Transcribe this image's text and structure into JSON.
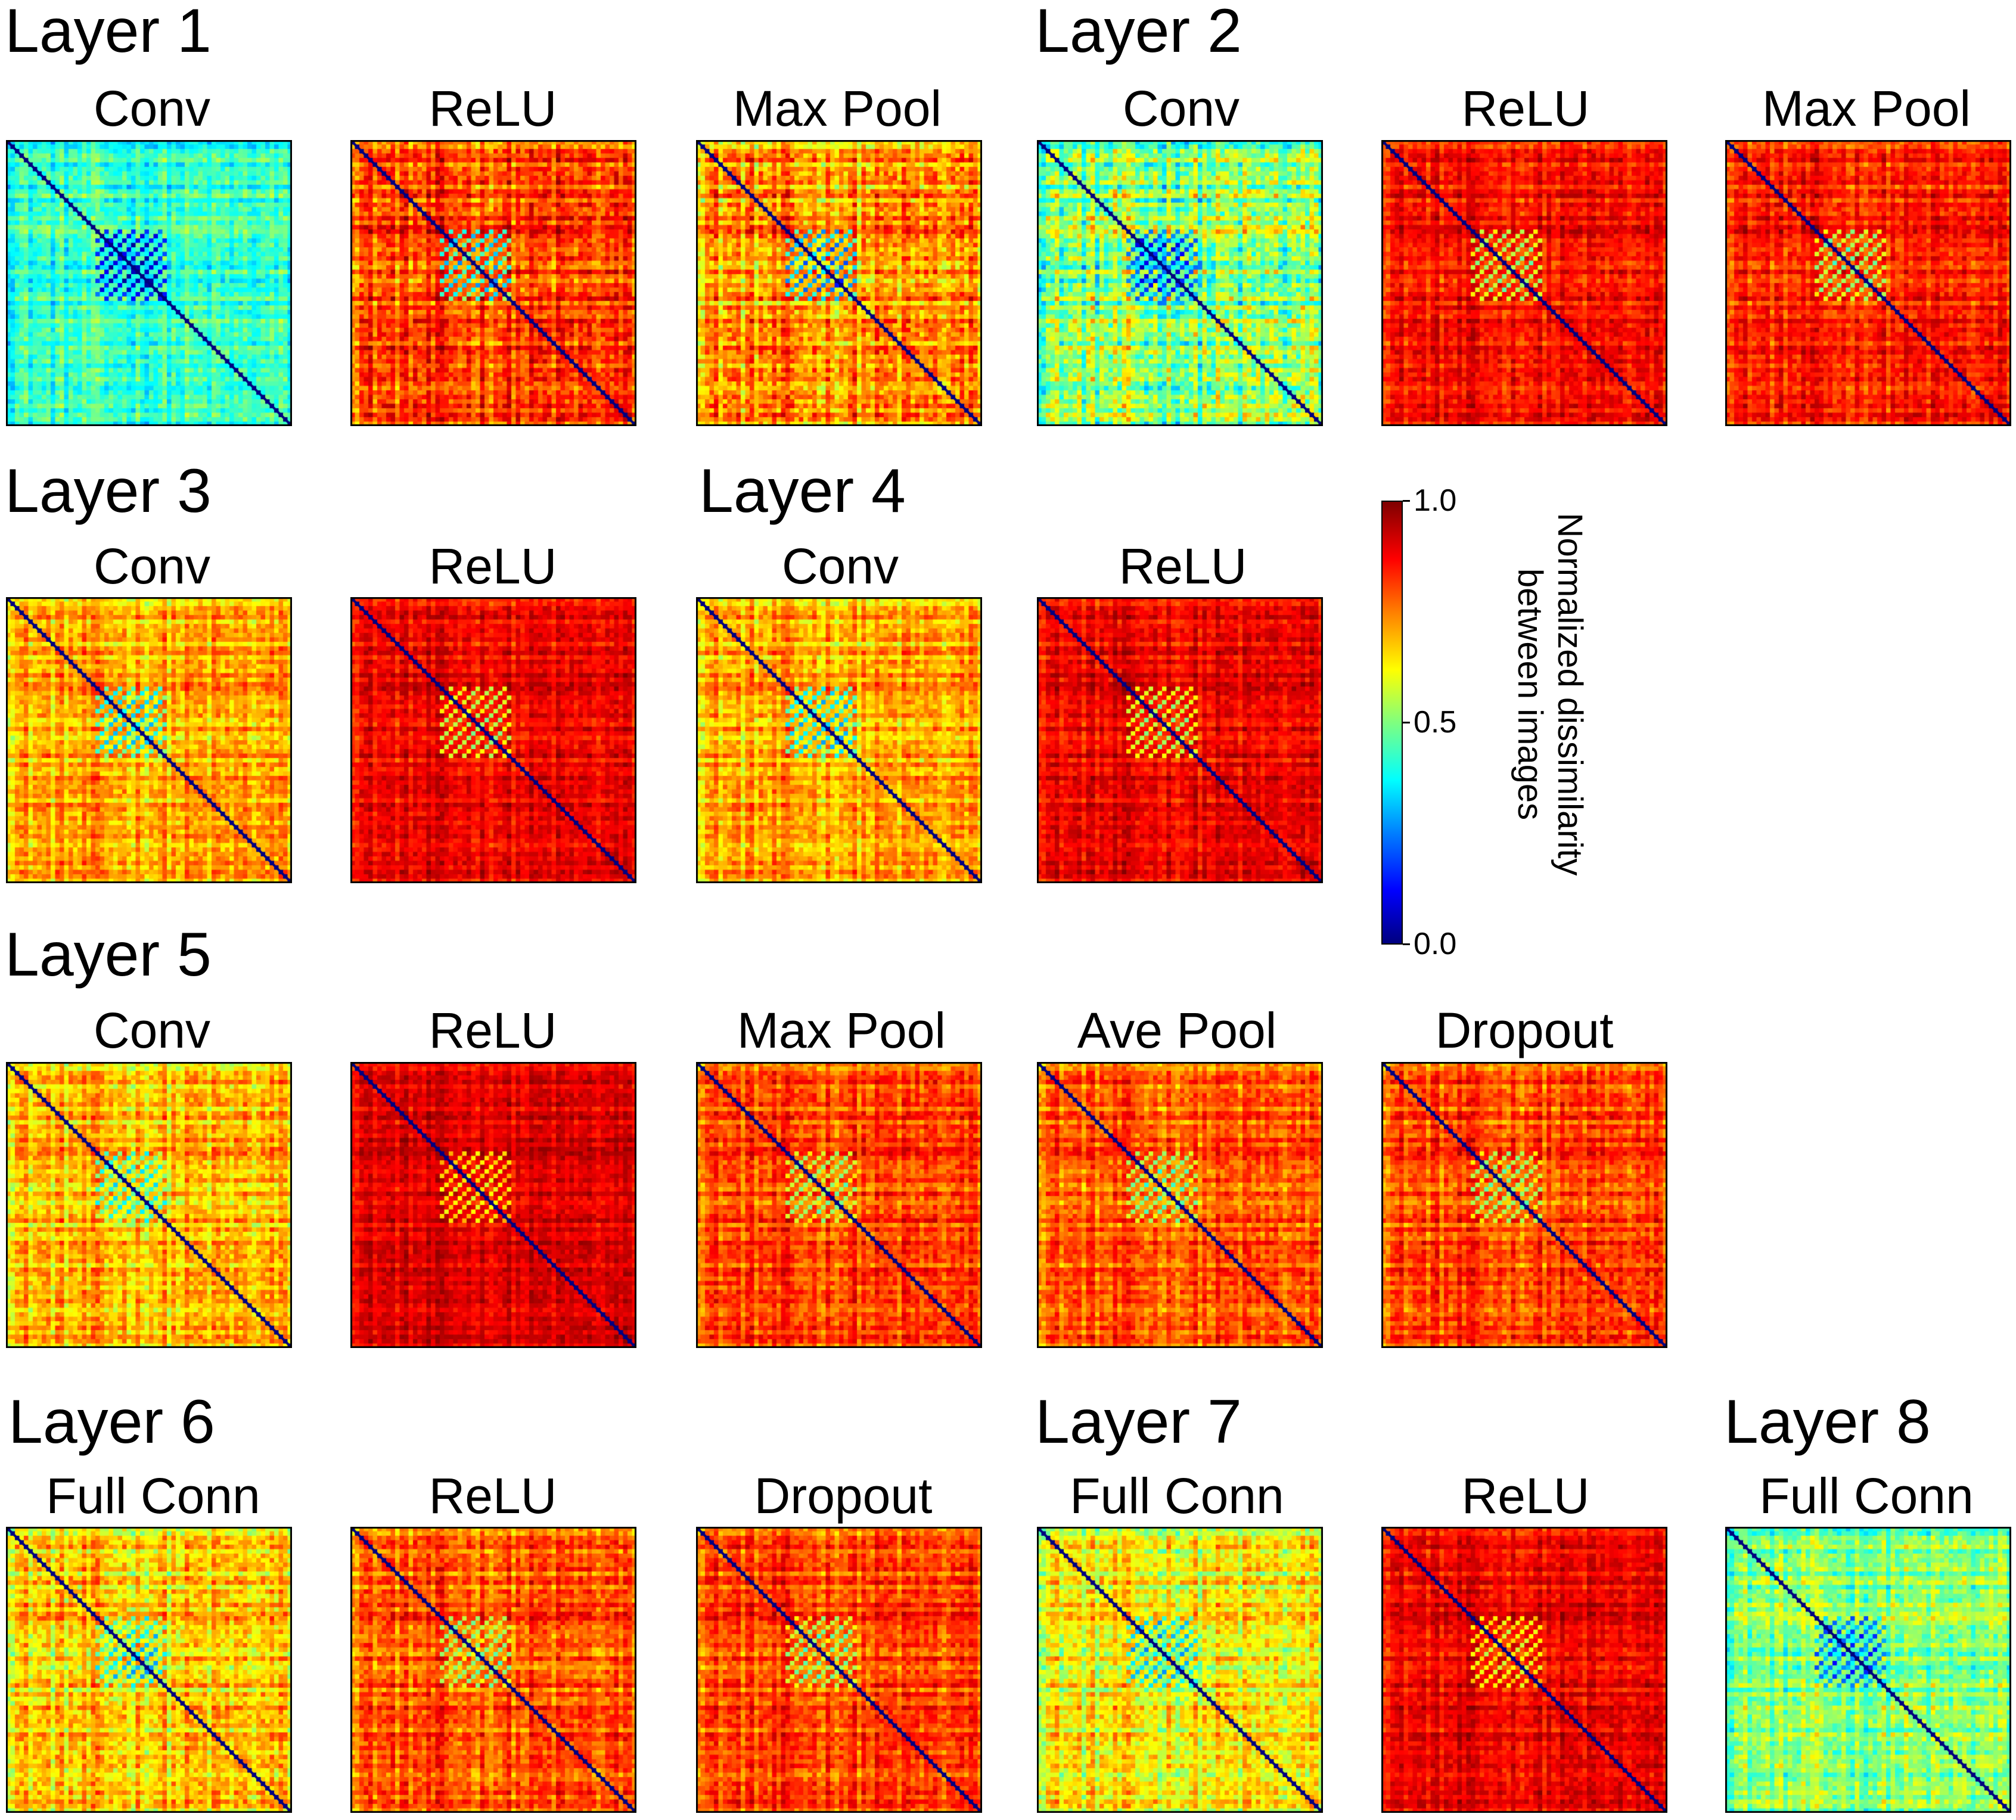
{
  "chart_data": {
    "type": "heatmap",
    "description_values": "Representational dissimilarity matrices (RDMs) per network layer/operation",
    "colormap": "jet",
    "colorbar": {
      "ticks": [
        "1.0",
        "0.5",
        "0.0"
      ],
      "label_line1": "Normalized dissimilarity",
      "label_line2": "between images",
      "range": [
        0.0,
        1.0
      ]
    },
    "layers": [
      {
        "title": "Layer 1",
        "panels": [
          {
            "title": "Conv",
            "mean": 0.42,
            "spread": 0.12,
            "block": -0.3
          },
          {
            "title": "ReLU",
            "mean": 0.8,
            "spread": 0.15,
            "block": -0.4
          },
          {
            "title": "Max Pool",
            "mean": 0.72,
            "spread": 0.17,
            "block": -0.4
          }
        ]
      },
      {
        "title": "Layer 2",
        "panels": [
          {
            "title": "Conv",
            "mean": 0.5,
            "spread": 0.2,
            "block": -0.3
          },
          {
            "title": "ReLU",
            "mean": 0.86,
            "spread": 0.1,
            "block": -0.3
          },
          {
            "title": "Max Pool",
            "mean": 0.84,
            "spread": 0.11,
            "block": -0.3
          }
        ]
      },
      {
        "title": "Layer 3",
        "panels": [
          {
            "title": "Conv",
            "mean": 0.7,
            "spread": 0.13,
            "block": -0.3
          }
        ]
      },
      {
        "title": "",
        "panels": [
          {
            "title": "ReLU",
            "mean": 0.88,
            "spread": 0.09,
            "block": -0.3
          }
        ]
      },
      {
        "title": "Layer 4",
        "panels": [
          {
            "title": "Conv",
            "mean": 0.7,
            "spread": 0.13,
            "block": -0.3
          },
          {
            "title": "ReLU",
            "mean": 0.88,
            "spread": 0.09,
            "block": -0.3
          }
        ]
      },
      {
        "title": "Layer 5",
        "panels": [
          {
            "title": "Conv",
            "mean": 0.68,
            "spread": 0.14,
            "block": -0.25
          },
          {
            "title": "ReLU",
            "mean": 0.9,
            "spread": 0.08,
            "block": -0.25
          },
          {
            "title": "Max Pool",
            "mean": 0.8,
            "spread": 0.12,
            "block": -0.25
          },
          {
            "title": "Ave Pool",
            "mean": 0.78,
            "spread": 0.12,
            "block": -0.25
          },
          {
            "title": "Dropout",
            "mean": 0.8,
            "spread": 0.12,
            "block": -0.25
          }
        ]
      },
      {
        "title": "Layer 6",
        "panels": [
          {
            "title": "Full Conn",
            "mean": 0.66,
            "spread": 0.15,
            "block": -0.25
          },
          {
            "title": "ReLU",
            "mean": 0.78,
            "spread": 0.13,
            "block": -0.25
          },
          {
            "title": "Dropout",
            "mean": 0.8,
            "spread": 0.12,
            "block": -0.25
          }
        ]
      },
      {
        "title": "Layer 7",
        "panels": [
          {
            "title": "Full Conn",
            "mean": 0.62,
            "spread": 0.15,
            "block": -0.25
          },
          {
            "title": "ReLU",
            "mean": 0.88,
            "spread": 0.09,
            "block": -0.25
          }
        ]
      },
      {
        "title": "Layer 8",
        "panels": [
          {
            "title": "Full Conn",
            "mean": 0.5,
            "spread": 0.14,
            "block": -0.25
          }
        ]
      }
    ]
  }
}
